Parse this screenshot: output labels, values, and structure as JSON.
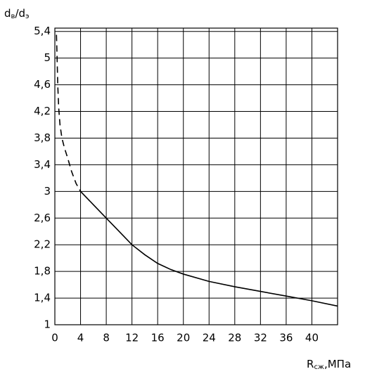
{
  "chart_data": {
    "type": "line",
    "y_label": [
      {
        "text": "d",
        "sub": false
      },
      {
        "text": "в",
        "sub": true
      },
      {
        "text": "/d",
        "sub": false
      },
      {
        "text": "э",
        "sub": true
      }
    ],
    "x_label": [
      {
        "text": "R",
        "sub": false
      },
      {
        "text": "сж",
        "sub": true
      },
      {
        "text": ",МПа",
        "sub": false
      }
    ],
    "xlim": [
      0,
      44
    ],
    "ylim": [
      1,
      5.45
    ],
    "xticks": [
      0,
      4,
      8,
      12,
      16,
      20,
      24,
      28,
      32,
      36,
      40
    ],
    "yticks": [
      1,
      {
        "value": 1.4,
        "label": "1,4"
      },
      {
        "value": 1.8,
        "label": "1,8"
      },
      {
        "value": 2.2,
        "label": "2,2"
      },
      {
        "value": 2.6,
        "label": "2,6"
      },
      3,
      {
        "value": 3.4,
        "label": "3,4"
      },
      {
        "value": 3.8,
        "label": "3,8"
      },
      {
        "value": 4.2,
        "label": "4,2"
      },
      {
        "value": 4.6,
        "label": "4,6"
      },
      5,
      {
        "value": 5.4,
        "label": "5,4"
      }
    ],
    "grid": true,
    "series": [
      {
        "color": "#000000",
        "dashed": true,
        "x": [
          0.25,
          0.35,
          0.45,
          0.6,
          0.8,
          1.1,
          1.5,
          2,
          2.6,
          3.3,
          4
        ],
        "values": [
          5.35,
          5.0,
          4.6,
          4.25,
          4.0,
          3.8,
          3.65,
          3.5,
          3.3,
          3.12,
          3.0
        ]
      },
      {
        "color": "#000000",
        "dashed": false,
        "x": [
          4,
          6,
          8,
          10,
          12,
          14,
          16,
          18,
          20,
          24,
          28,
          32,
          36,
          40,
          44
        ],
        "values": [
          3.0,
          2.8,
          2.6,
          2.4,
          2.2,
          2.05,
          1.92,
          1.83,
          1.76,
          1.65,
          1.57,
          1.5,
          1.43,
          1.36,
          1.28
        ]
      }
    ]
  }
}
